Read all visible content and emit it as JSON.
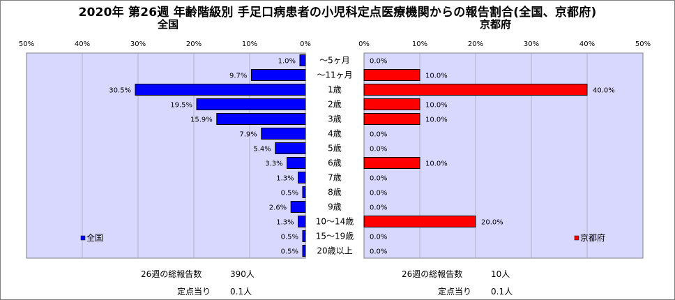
{
  "title": "2020年 第26週 年齢階級別 手足口病患者の小児科定点医療機関からの報告割合(全国、京都府)",
  "left_panel_title": "全国",
  "right_panel_title": "京都府",
  "chart_data": {
    "type": "bar",
    "orientation": "horizontal",
    "layout": "back-to-back",
    "value_unit": "%",
    "categories": [
      "～5ヶ月",
      "～11ヶ月",
      "1歳",
      "2歳",
      "3歳",
      "4歳",
      "5歳",
      "6歳",
      "7歳",
      "8歳",
      "9歳",
      "10～14歳",
      "15～19歳",
      "20歳以上"
    ],
    "x_ticks": [
      "50%",
      "40%",
      "30%",
      "20%",
      "10%",
      "0%"
    ],
    "xlim": [
      0,
      50
    ],
    "grid": true,
    "series": [
      {
        "name": "全国",
        "side": "left",
        "color": "#0000ff",
        "values": [
          1.0,
          9.7,
          30.5,
          19.5,
          15.9,
          7.9,
          5.4,
          3.3,
          1.3,
          0.5,
          2.6,
          1.3,
          0.5,
          0.5
        ],
        "labels": [
          "1.0%",
          "9.7%",
          "30.5%",
          "19.5%",
          "15.9%",
          "7.9%",
          "5.4%",
          "3.3%",
          "1.3%",
          "0.5%",
          "2.6%",
          "1.3%",
          "0.5%",
          "0.5%"
        ],
        "legend_placement": "bottom-left"
      },
      {
        "name": "京都府",
        "side": "right",
        "color": "#ff0000",
        "values": [
          0,
          10,
          40,
          10,
          10,
          0,
          0,
          10,
          0,
          0,
          0,
          20,
          0,
          0
        ],
        "labels": [
          "0.0%",
          "10.0%",
          "40.0%",
          "10.0%",
          "10.0%",
          "0.0%",
          "0.0%",
          "10.0%",
          "0.0%",
          "0.0%",
          "0.0%",
          "20.0%",
          "0.0%",
          "0.0%"
        ],
        "legend_placement": "bottom-right"
      }
    ],
    "plot_background": "#d8d8ff"
  },
  "footer": {
    "left": {
      "total_label": "26週の総報告数",
      "total_value": "390人",
      "per_site_label": "定点当り",
      "per_site_value": "0.1人"
    },
    "right": {
      "total_label": "26週の総報告数",
      "total_value": "10人",
      "per_site_label": "定点当り",
      "per_site_value": "0.1人"
    }
  }
}
